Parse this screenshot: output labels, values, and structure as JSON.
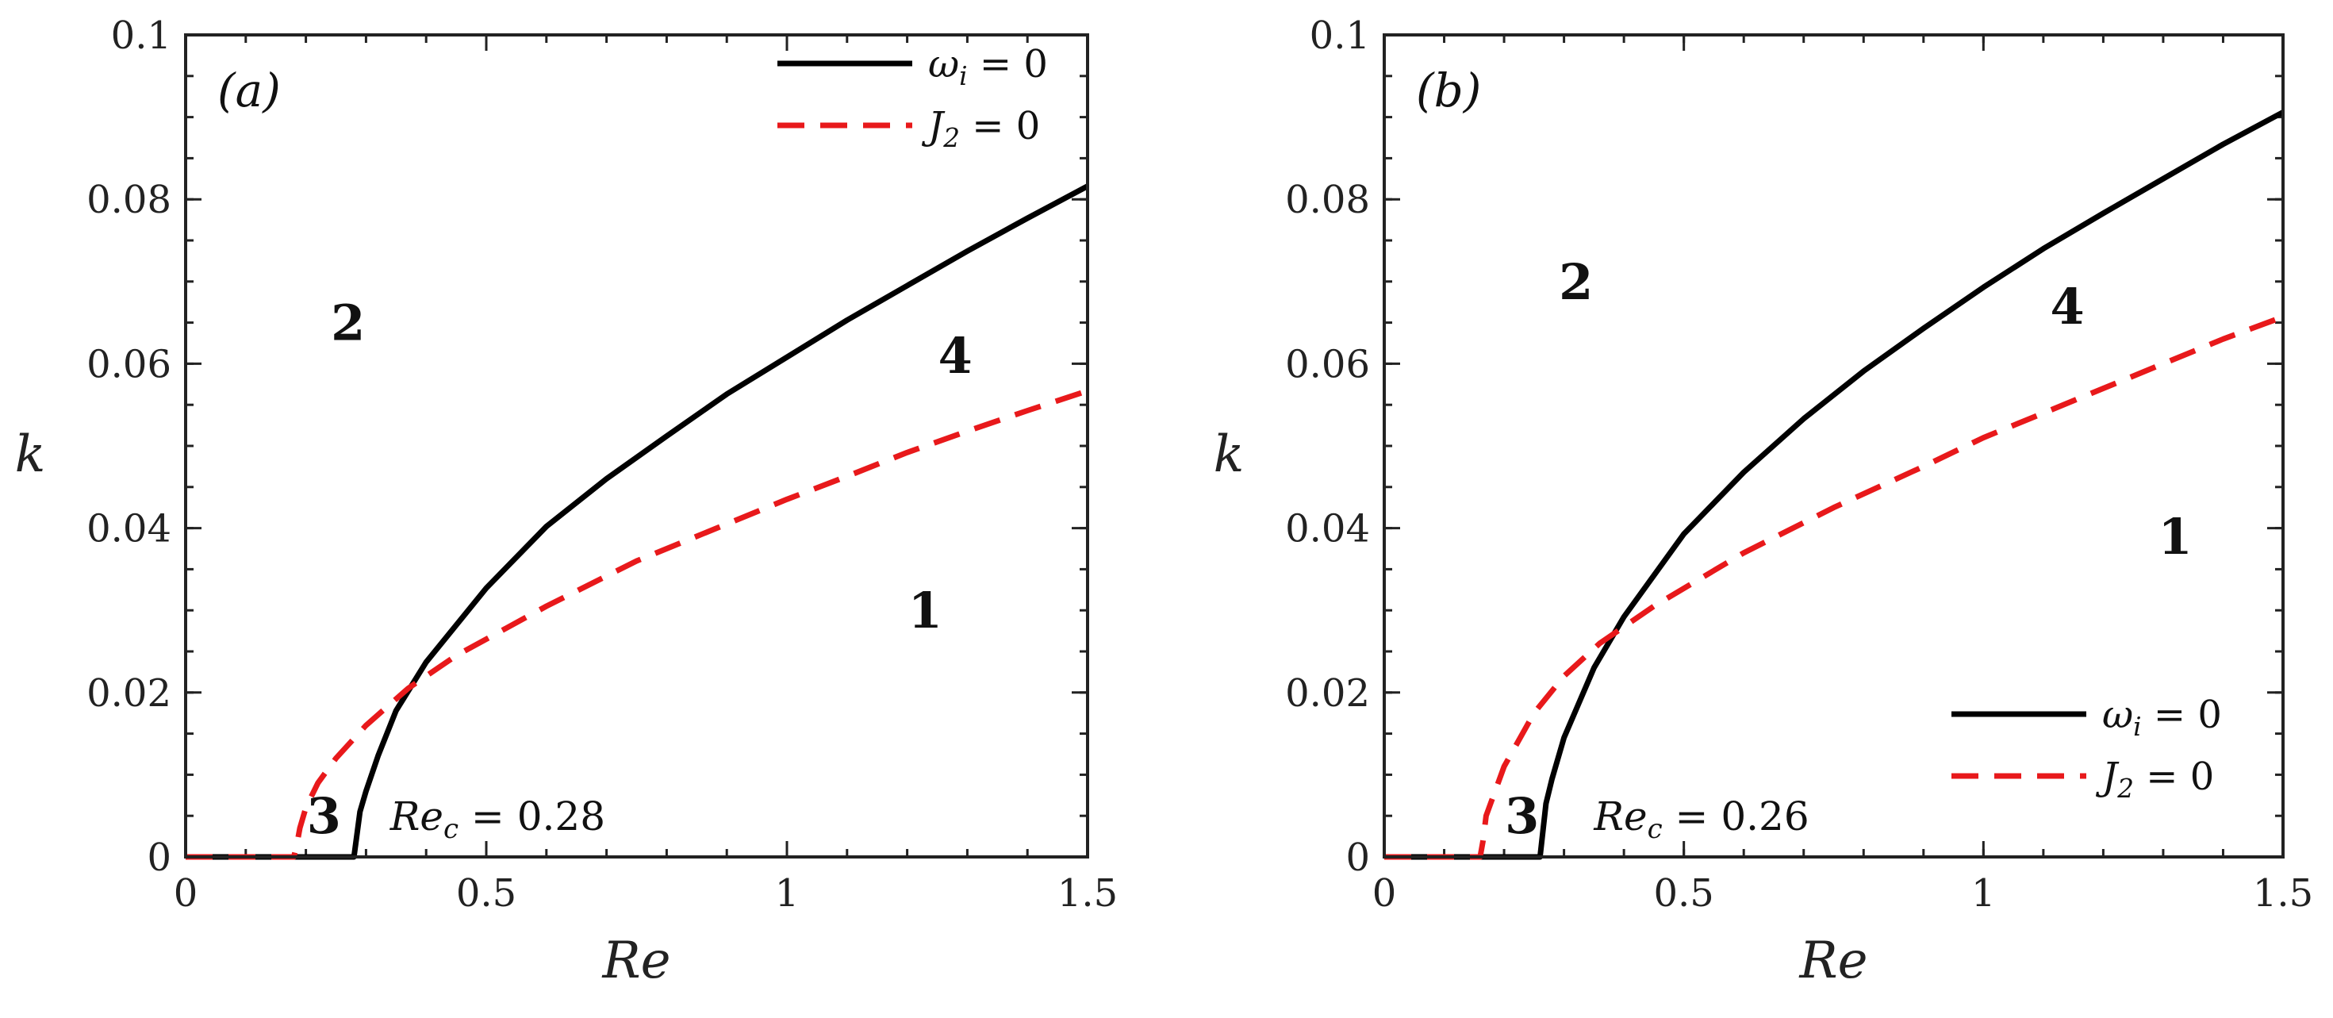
{
  "chart_data": [
    {
      "type": "line",
      "panel_label": "(a)",
      "xlabel": "Re",
      "ylabel": "k",
      "xlim": [
        0,
        1.5
      ],
      "ylim": [
        0,
        0.1
      ],
      "xticks": [
        "0",
        "0.5",
        "1",
        "1.5"
      ],
      "yticks": [
        "0",
        "0.02",
        "0.04",
        "0.06",
        "0.08",
        "0.1"
      ],
      "legend_position": "top-right",
      "series": [
        {
          "name": "ω_i = 0",
          "legend_main": "ω",
          "legend_sub": "i",
          "legend_rest": " = 0",
          "color": "#000000",
          "style": "solid",
          "x": [
            0,
            0.1,
            0.2,
            0.28,
            0.29,
            0.3,
            0.32,
            0.35,
            0.4,
            0.5,
            0.6,
            0.7,
            0.8,
            0.9,
            1.0,
            1.1,
            1.2,
            1.3,
            1.4,
            1.5
          ],
          "y": [
            0,
            0,
            0,
            0,
            0.0055,
            0.008,
            0.0123,
            0.0178,
            0.0237,
            0.0327,
            0.0402,
            0.046,
            0.0512,
            0.0563,
            0.0608,
            0.0653,
            0.0695,
            0.0737,
            0.0777,
            0.0816
          ]
        },
        {
          "name": "J_2 = 0",
          "legend_main": "J",
          "legend_sub": "2",
          "legend_rest": " = 0",
          "color": "#e8191b",
          "style": "dashed",
          "x": [
            0,
            0.1,
            0.18,
            0.185,
            0.19,
            0.2,
            0.22,
            0.25,
            0.3,
            0.37,
            0.45,
            0.6,
            0.75,
            0.9,
            1.0,
            1.1,
            1.2,
            1.3,
            1.4,
            1.5
          ],
          "y": [
            0,
            0,
            0,
            0.0015,
            0.0035,
            0.006,
            0.009,
            0.012,
            0.016,
            0.0205,
            0.0245,
            0.0305,
            0.036,
            0.0405,
            0.0435,
            0.0463,
            0.0492,
            0.0518,
            0.0543,
            0.0567
          ]
        }
      ],
      "regions": [
        {
          "label": "1",
          "re": 1.23,
          "k": 0.03
        },
        {
          "label": "2",
          "re": 0.27,
          "k": 0.065
        },
        {
          "label": "3",
          "re": 0.23,
          "k": 0.005
        },
        {
          "label": "4",
          "re": 1.28,
          "k": 0.061
        }
      ],
      "annotation": {
        "main": "Re",
        "sub": "c",
        "rest": " = 0.28",
        "re": 0.34,
        "k": 0.005
      }
    },
    {
      "type": "line",
      "panel_label": "(b)",
      "xlabel": "Re",
      "ylabel": "k",
      "xlim": [
        0,
        1.5
      ],
      "ylim": [
        0,
        0.1
      ],
      "xticks": [
        "0",
        "0.5",
        "1",
        "1.5"
      ],
      "yticks": [
        "0",
        "0.02",
        "0.04",
        "0.06",
        "0.08",
        "0.1"
      ],
      "legend_position": "bottom-right",
      "series": [
        {
          "name": "ω_i = 0",
          "legend_main": "ω",
          "legend_sub": "i",
          "legend_rest": " = 0",
          "color": "#000000",
          "style": "solid",
          "x": [
            0,
            0.1,
            0.2,
            0.26,
            0.27,
            0.28,
            0.3,
            0.35,
            0.4,
            0.5,
            0.6,
            0.7,
            0.8,
            0.9,
            1.0,
            1.1,
            1.2,
            1.3,
            1.4,
            1.5
          ],
          "y": [
            0,
            0,
            0,
            0,
            0.0065,
            0.0095,
            0.0145,
            0.023,
            0.0292,
            0.0393,
            0.0468,
            0.0533,
            0.0591,
            0.0643,
            0.0693,
            0.074,
            0.0783,
            0.0825,
            0.0867,
            0.0906
          ]
        },
        {
          "name": "J_2 = 0",
          "legend_main": "J",
          "legend_sub": "2",
          "legend_rest": " = 0",
          "color": "#e8191b",
          "style": "dashed",
          "x": [
            0,
            0.1,
            0.16,
            0.165,
            0.17,
            0.2,
            0.25,
            0.3,
            0.36,
            0.45,
            0.6,
            0.75,
            0.9,
            1.0,
            1.1,
            1.2,
            1.3,
            1.4,
            1.5
          ],
          "y": [
            0,
            0,
            0,
            0.002,
            0.005,
            0.011,
            0.0175,
            0.022,
            0.026,
            0.0305,
            0.037,
            0.0425,
            0.0475,
            0.051,
            0.054,
            0.057,
            0.06,
            0.063,
            0.0657
          ]
        }
      ],
      "regions": [
        {
          "label": "1",
          "re": 1.32,
          "k": 0.039
        },
        {
          "label": "2",
          "re": 0.32,
          "k": 0.07
        },
        {
          "label": "3",
          "re": 0.23,
          "k": 0.005
        },
        {
          "label": "4",
          "re": 1.14,
          "k": 0.067
        }
      ],
      "annotation": {
        "main": "Re",
        "sub": "c",
        "rest": " = 0.26",
        "re": 0.35,
        "k": 0.005
      }
    }
  ]
}
